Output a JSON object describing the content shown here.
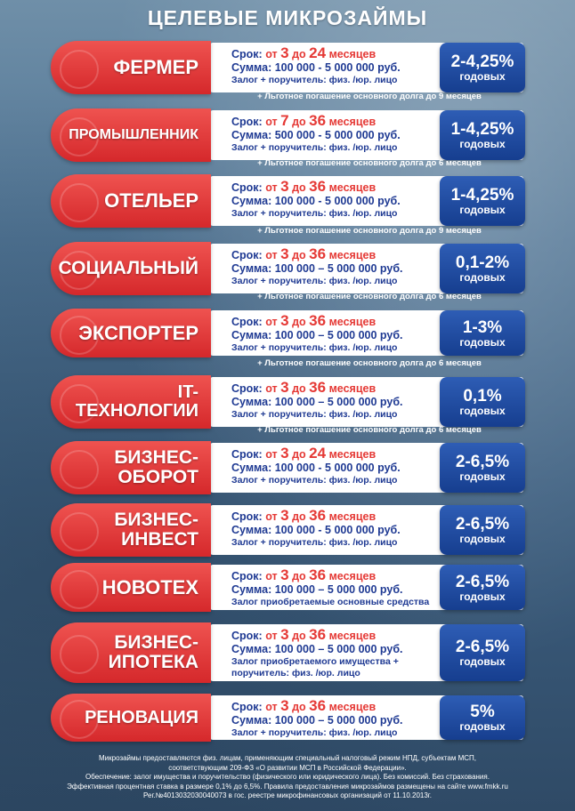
{
  "title": "ЦЕЛЕВЫЕ МИКРОЗАЙМЫ",
  "colors": {
    "pill_red": "#e53935",
    "rate_blue": "#1f4fa8",
    "text_blue": "#1f3a93"
  },
  "products": [
    {
      "name": "ФЕРМЕР",
      "term_pre": "Срок:",
      "term_from": "от",
      "term_min": "3",
      "term_to": "до",
      "term_max": "24",
      "term_unit": "месяцев",
      "sum": "Сумма: 100 000 - 5 000 000 руб.",
      "collateral": "Залог + поручитель: физ. /юр. лицо",
      "rate": "2-4,25%",
      "rate_unit": "годовых",
      "note": "+ Льготное погашение основного долга до 9 месяцев"
    },
    {
      "name": "ПРОМЫШЛЕННИК",
      "term_pre": "Срок:",
      "term_from": "от",
      "term_min": "7",
      "term_to": "до",
      "term_max": "36",
      "term_unit": "месяцев",
      "sum": "Сумма: 500 000 - 5 000 000 руб.",
      "collateral": "Залог + поручитель: физ. /юр. лицо",
      "rate": "1-4,25%",
      "rate_unit": "годовых",
      "note": "+ Льготное погашение основного долга до 6 месяцев"
    },
    {
      "name": "ОТЕЛЬЕР",
      "term_pre": "Срок:",
      "term_from": "от",
      "term_min": "3",
      "term_to": "до",
      "term_max": "36",
      "term_unit": "месяцев",
      "sum": "Сумма: 100 000 - 5 000 000 руб.",
      "collateral": "Залог + поручитель: физ. /юр. лицо",
      "rate": "1-4,25%",
      "rate_unit": "годовых",
      "note": "+ Льготное погашение основного долга до 9 месяцев"
    },
    {
      "name": "СОЦИАЛЬНЫЙ",
      "term_pre": "Срок:",
      "term_from": "от",
      "term_min": "3",
      "term_to": "до",
      "term_max": "36",
      "term_unit": "месяцев",
      "sum": "Сумма: 100 000 – 5 000 000 руб.",
      "collateral": "Залог + поручитель: физ. /юр. лицо",
      "rate": "0,1-2%",
      "rate_unit": "годовых",
      "note": "+ Льготное погашение основного долга до 6 месяцев"
    },
    {
      "name": "ЭКСПОРТЕР",
      "term_pre": "Срок:",
      "term_from": "от",
      "term_min": "3",
      "term_to": "до",
      "term_max": "36",
      "term_unit": "месяцев",
      "sum": "Сумма: 100 000 – 5 000 000 руб.",
      "collateral": "Залог + поручитель: физ. /юр. лицо",
      "rate": "1-3%",
      "rate_unit": "годовых",
      "note": "+ Льготное погашение основного долга до 6 месяцев"
    },
    {
      "name": "IT-\nТЕХНОЛОГИИ",
      "term_pre": "Срок:",
      "term_from": "от",
      "term_min": "3",
      "term_to": "до",
      "term_max": "36",
      "term_unit": "месяцев",
      "sum": "Сумма: 100 000 – 5 000 000 руб.",
      "collateral": "Залог + поручитель: физ. /юр. лицо",
      "rate": "0,1%",
      "rate_unit": "годовых",
      "note": "+ Льготное погашение основного долга до 6 месяцев"
    },
    {
      "name": "БИЗНЕС-\nОБОРОТ",
      "term_pre": "Срок:",
      "term_from": "от",
      "term_min": "3",
      "term_to": "до",
      "term_max": "24",
      "term_unit": "месяцев",
      "sum": "Сумма: 100 000 - 5 000 000 руб.",
      "collateral": "Залог + поручитель: физ. /юр. лицо",
      "rate": "2-6,5%",
      "rate_unit": "годовых",
      "note": ""
    },
    {
      "name": "БИЗНЕС-\nИНВЕСТ",
      "term_pre": "Срок:",
      "term_from": "от",
      "term_min": "3",
      "term_to": "до",
      "term_max": "36",
      "term_unit": "месяцев",
      "sum": "Сумма: 100 000 - 5 000 000 руб.",
      "collateral": "Залог + поручитель: физ. /юр. лицо",
      "rate": "2-6,5%",
      "rate_unit": "годовых",
      "note": ""
    },
    {
      "name": "НОВОТЕХ",
      "term_pre": "Срок:",
      "term_from": "от",
      "term_min": "3",
      "term_to": "до",
      "term_max": "36",
      "term_unit": "месяцев",
      "sum": "Сумма: 100 000 – 5 000 000 руб.",
      "collateral": "Залог приобретаемые основные средства",
      "rate": "2-6,5%",
      "rate_unit": "годовых",
      "note": ""
    },
    {
      "name": "БИЗНЕС-\nИПОТЕКА",
      "term_pre": "Срок:",
      "term_from": "от",
      "term_min": "3",
      "term_to": "до",
      "term_max": "36",
      "term_unit": "месяцев",
      "sum": "Сумма: 100 000 – 5 000 000 руб.",
      "collateral": "Залог приобретаемого имущества +\nпоручитель: физ. /юр. лицо",
      "rate": "2-6,5%",
      "rate_unit": "годовых",
      "note": ""
    },
    {
      "name": "РЕНОВАЦИЯ",
      "term_pre": "Срок:",
      "term_from": "от",
      "term_min": "3",
      "term_to": "до",
      "term_max": "36",
      "term_unit": "месяцев",
      "sum": "Сумма: 100 000 – 5 000 000 руб.",
      "collateral": "Залог + поручитель: физ. /юр. лицо",
      "rate": "5%",
      "rate_unit": "годовых",
      "note": ""
    }
  ],
  "footer": [
    "Микрозаймы предоставляются физ. лицам, применяющим специальный налоговый режим НПД, субъектам МСП,",
    "соответствующим 209-ФЗ «О развитии МСП в Российской Федерации».",
    "Обеспечение: залог имущества и поручительство (физического или юридического лица). Без комиссий. Без страхования.",
    "Эффективная процентная ставка в размере 0,1% до 6,5%. Правила предоставления микрозаймов размещены на сайте www.fmkk.ru",
    "Рег.№4013032030040073 в гос. реестре микрофинансовых организаций от 11.10.2013г."
  ]
}
